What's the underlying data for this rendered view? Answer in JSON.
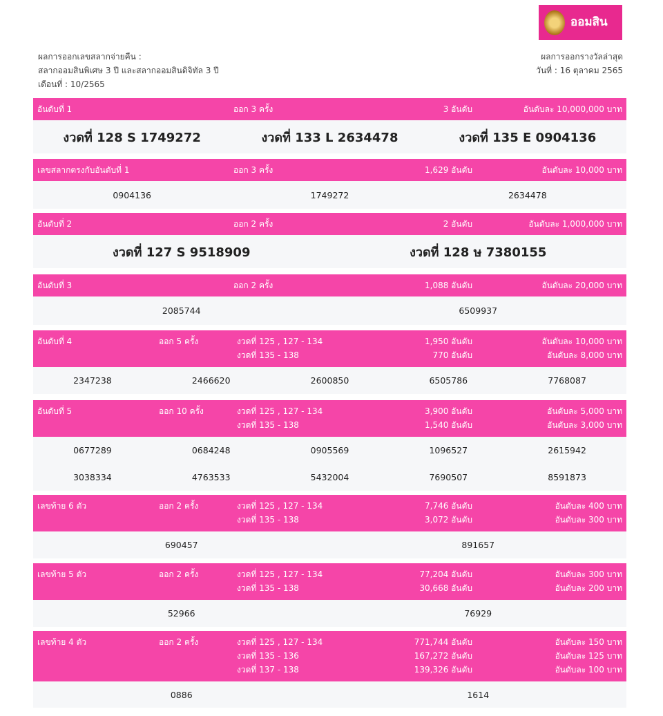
{
  "logo": {
    "text": "ออมสิน",
    "brand_color": "#e8298f"
  },
  "info_left": [
    "ผลการออกเลขสลากจ่ายคืน :",
    "สลากออมสินพิเศษ 3 ปี และสลากออมสินดิจิทัล 3 ปี",
    "เดือนที่ : 10/2565"
  ],
  "info_right": [
    "ผลการออกรางวัลล่าสุด",
    "วันที่ : 16 ตุลาคม 2565"
  ],
  "colors": {
    "header": "#f545a8",
    "row": "#f6f7f9"
  },
  "sections": [
    {
      "label": "อันดับที่ 1",
      "times": "ออก 3 ครั้ง",
      "rounds": [],
      "counts": [
        "3 อันดับ"
      ],
      "prizes": [
        "อันดับละ 10,000,000 บาท"
      ],
      "big": true,
      "cols": 3,
      "values": [
        "งวดที่ 128 S 1749272",
        "งวดที่ 133 L 2634478",
        "งวดที่ 135 E 0904136"
      ]
    },
    {
      "label": "เลขสลากตรงกับอันดับที่ 1",
      "times": "ออก 3 ครั้ง",
      "rounds": [],
      "counts": [
        "1,629 อันดับ"
      ],
      "prizes": [
        "อันดับละ 10,000 บาท"
      ],
      "big": false,
      "cols": 3,
      "values": [
        "0904136",
        "1749272",
        "2634478"
      ]
    },
    {
      "label": "อันดับที่ 2",
      "times": "ออก 2 ครั้ง",
      "rounds": [],
      "counts": [
        "2 อันดับ"
      ],
      "prizes": [
        "อันดับละ 1,000,000 บาท"
      ],
      "big": true,
      "cols": 2,
      "values": [
        "งวดที่ 127 S 9518909",
        "งวดที่ 128 ษ 7380155"
      ]
    },
    {
      "label": "อันดับที่ 3",
      "times": "ออก 2 ครั้ง",
      "rounds": [],
      "counts": [
        "1,088 อันดับ"
      ],
      "prizes": [
        "อันดับละ 20,000 บาท"
      ],
      "big": false,
      "cols": 2,
      "values": [
        "2085744",
        "6509937"
      ]
    },
    {
      "label": "อันดับที่ 4",
      "times": "ออก 5 ครั้ง",
      "rounds": [
        "งวดที่ 125 , 127 - 134",
        "งวดที่ 135 - 138"
      ],
      "counts": [
        "1,950 อันดับ",
        "770 อันดับ"
      ],
      "prizes": [
        "อันดับละ 10,000 บาท",
        "อันดับละ 8,000 บาท"
      ],
      "big": false,
      "cols": 5,
      "values": [
        "2347238",
        "2466620",
        "2600850",
        "6505786",
        "7768087"
      ]
    },
    {
      "label": "อันดับที่ 5",
      "times": "ออก 10 ครั้ง",
      "rounds": [
        "งวดที่ 125 , 127 - 134",
        "งวดที่ 135 - 138"
      ],
      "counts": [
        "3,900 อันดับ",
        "1,540 อันดับ"
      ],
      "prizes": [
        "อันดับละ 5,000 บาท",
        "อันดับละ 3,000 บาท"
      ],
      "big": false,
      "cols": 5,
      "values": [
        "0677289",
        "0684248",
        "0905569",
        "1096527",
        "2615942",
        "3038334",
        "4763533",
        "5432004",
        "7690507",
        "8591873"
      ]
    },
    {
      "label": "เลขท้าย 6 ตัว",
      "times": "ออก 2 ครั้ง",
      "rounds": [
        "งวดที่ 125 , 127 - 134",
        "งวดที่ 135 - 138"
      ],
      "counts": [
        "7,746 อันดับ",
        "3,072 อันดับ"
      ],
      "prizes": [
        "อันดับละ 400 บาท",
        "อันดับละ 300 บาท"
      ],
      "big": false,
      "cols": 2,
      "values": [
        "690457",
        "891657"
      ]
    },
    {
      "label": "เลขท้าย 5 ตัว",
      "times": "ออก 2 ครั้ง",
      "rounds": [
        "งวดที่ 125 , 127 - 134",
        "งวดที่ 135 - 138"
      ],
      "counts": [
        "77,204 อันดับ",
        "30,668 อันดับ"
      ],
      "prizes": [
        "อันดับละ 300 บาท",
        "อันดับละ 200 บาท"
      ],
      "big": false,
      "cols": 2,
      "values": [
        "52966",
        "76929"
      ]
    },
    {
      "label": "เลขท้าย 4 ตัว",
      "times": "ออก 2 ครั้ง",
      "rounds": [
        "งวดที่ 125 , 127 - 134",
        "งวดที่ 135 - 136",
        "งวดที่ 137 - 138"
      ],
      "counts": [
        "771,744 อันดับ",
        "167,272 อันดับ",
        "139,326 อันดับ"
      ],
      "prizes": [
        "อันดับละ 150 บาท",
        "อันดับละ 125 บาท",
        "อันดับละ 100 บาท"
      ],
      "big": false,
      "cols": 2,
      "values": [
        "0886",
        "1614"
      ]
    }
  ]
}
